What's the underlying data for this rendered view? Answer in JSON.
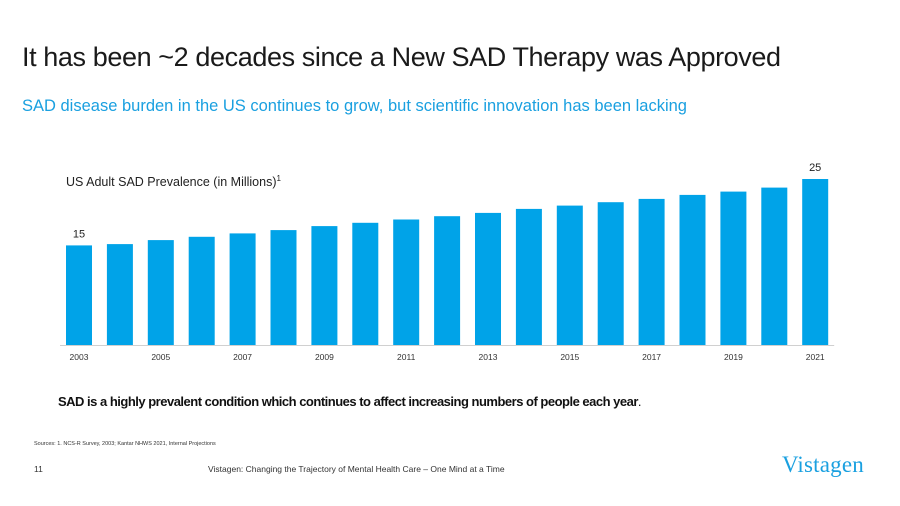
{
  "slide": {
    "title": "It has been ~2 decades since a New SAD Therapy was Approved",
    "subtitle": "SAD disease burden in the US continues to grow, but scientific innovation has been lacking",
    "callout": "SAD is a highly prevalent condition which continues to affect increasing numbers of people each year",
    "callout_end": ".",
    "sources": "Sources: 1. NCS-R Survey, 2003; Kantar NHWS 2021, Internal Projections",
    "page_number": "11",
    "footer": "Vistagen: Changing the Trajectory of Mental Health Care – One Mind at a Time",
    "logo": "Vistagen"
  },
  "colors": {
    "accent": "#1aa0e0",
    "bar": "#00a3e8",
    "axis": "#d0d0d0",
    "text": "#1a1a1a"
  },
  "chart_data": {
    "type": "bar",
    "title": "US Adult SAD Prevalence (in Millions)",
    "title_superscript": "1",
    "categories": [
      "2003",
      "2004",
      "2005",
      "2006",
      "2007",
      "2008",
      "2009",
      "2010",
      "2011",
      "2012",
      "2013",
      "2014",
      "2015",
      "2016",
      "2017",
      "2018",
      "2019",
      "2020",
      "2021"
    ],
    "tick_labels": [
      "2003",
      "",
      "2005",
      "",
      "2007",
      "",
      "2009",
      "",
      "2011",
      "",
      "2013",
      "",
      "2015",
      "",
      "2017",
      "",
      "2019",
      "",
      "2021"
    ],
    "values": [
      15,
      15.2,
      15.8,
      16.3,
      16.8,
      17.3,
      17.9,
      18.4,
      18.9,
      19.4,
      19.9,
      20.5,
      21.0,
      21.5,
      22.0,
      22.6,
      23.1,
      23.7,
      25
    ],
    "data_labels": [
      "15",
      "",
      "",
      "",
      "",
      "",
      "",
      "",
      "",
      "",
      "",
      "",
      "",
      "",
      "",
      "",
      "",
      "",
      "25"
    ],
    "ylim": [
      0,
      25
    ],
    "xlabel": "",
    "ylabel": "",
    "grid": false
  }
}
